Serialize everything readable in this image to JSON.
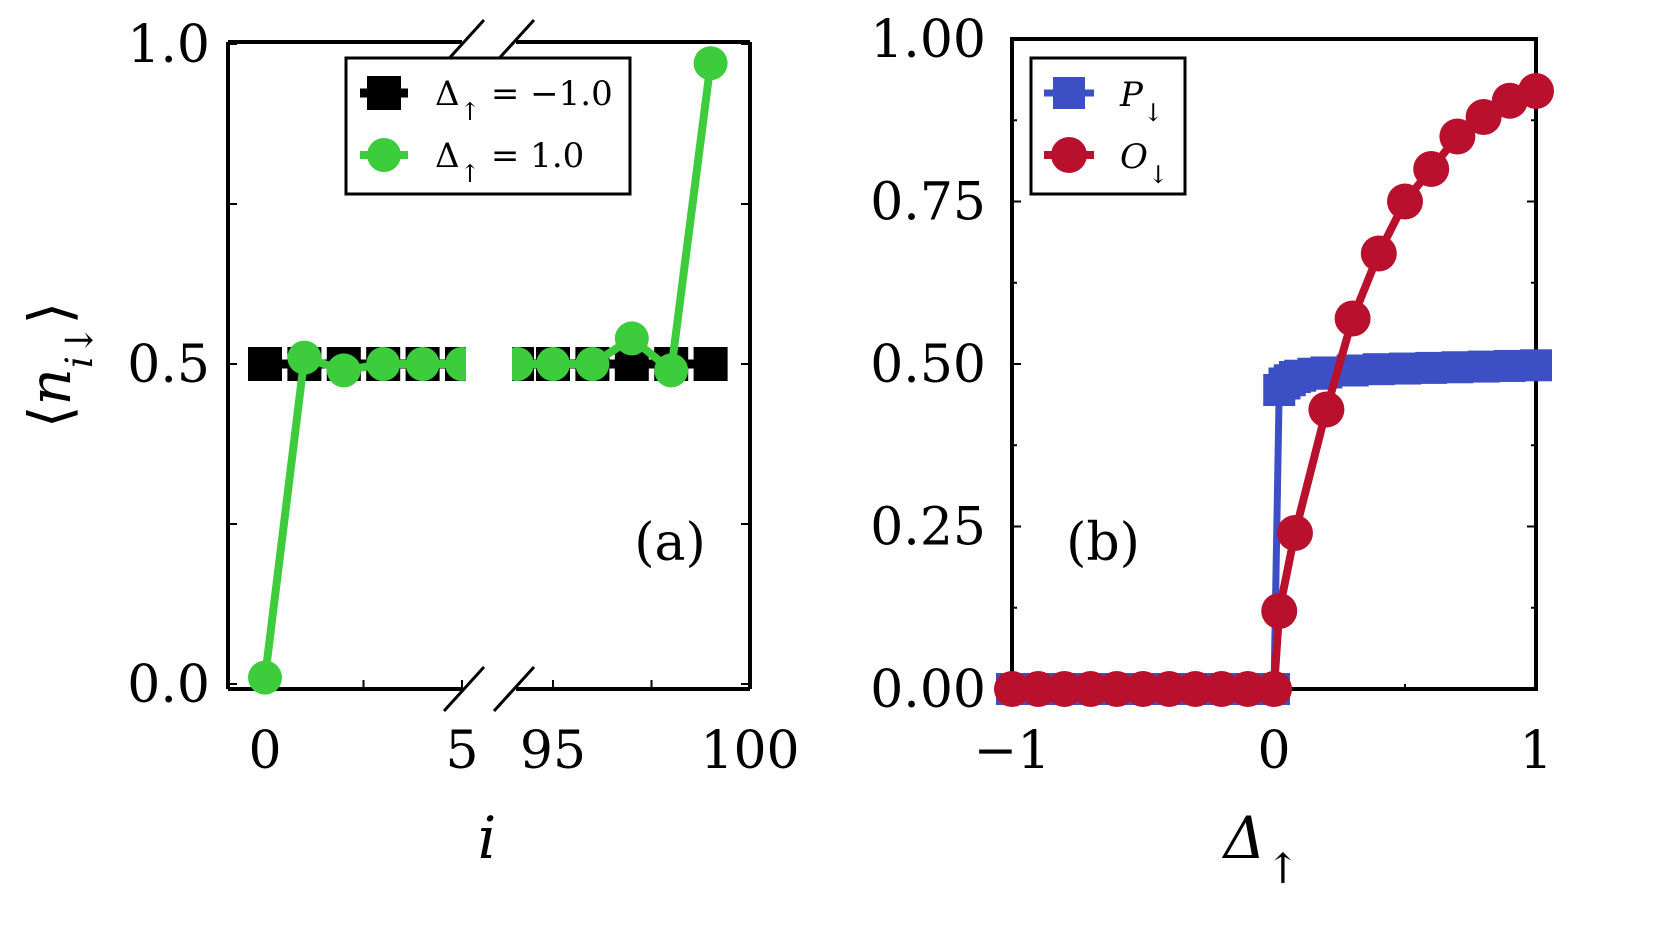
{
  "colors": {
    "black_series": "#000000",
    "green_series": "#3ccc3c",
    "blue_series": "#3d4fc4",
    "red_series": "#b8102d"
  },
  "chart_data": [
    {
      "type": "line",
      "panel_label": "(a)",
      "xlabel": "i",
      "ylabel": "⟨n_{i↓}⟩",
      "ylim": [
        0.0,
        1.0
      ],
      "broken_x_axis": true,
      "x_segments": [
        [
          0,
          5
        ],
        [
          95,
          100
        ]
      ],
      "x_ticks": [
        "0",
        "5",
        "95",
        "100"
      ],
      "y_ticks": [
        "0.0",
        "0.5",
        "1.0"
      ],
      "legend_position": "top-right",
      "grid": false,
      "series": [
        {
          "name": "Δ↑ = −1.0",
          "color": "#000000",
          "marker": "square",
          "x": [
            0,
            1,
            2,
            3,
            4,
            5,
            94,
            95,
            96,
            97,
            98,
            99
          ],
          "values": [
            0.5,
            0.5,
            0.5,
            0.5,
            0.5,
            0.5,
            0.5,
            0.5,
            0.5,
            0.5,
            0.5,
            0.5
          ]
        },
        {
          "name": "Δ↑ = 1.0",
          "color": "#3ccc3c",
          "marker": "circle",
          "x": [
            0,
            1,
            2,
            3,
            4,
            5,
            94,
            95,
            96,
            97,
            98,
            99
          ],
          "values": [
            0.01,
            0.51,
            0.49,
            0.5,
            0.5,
            0.5,
            0.5,
            0.5,
            0.5,
            0.54,
            0.49,
            0.97
          ]
        }
      ]
    },
    {
      "type": "line",
      "panel_label": "(b)",
      "xlabel": "Δ↑",
      "ylabel": "",
      "xlim": [
        -1.0,
        1.0
      ],
      "ylim": [
        0.0,
        1.0
      ],
      "x_ticks": [
        "−1",
        "0",
        "1"
      ],
      "y_ticks": [
        "0.00",
        "0.25",
        "0.50",
        "0.75",
        "1.00"
      ],
      "legend_position": "top-left",
      "grid": false,
      "series": [
        {
          "name": "P↓",
          "color": "#3d4fc4",
          "marker": "square",
          "x": [
            -1.0,
            -0.9,
            -0.8,
            -0.7,
            -0.6,
            -0.5,
            -0.4,
            -0.3,
            -0.2,
            -0.1,
            0.0,
            0.02,
            0.04,
            0.06,
            0.08,
            0.1,
            0.15,
            0.2,
            0.3,
            0.4,
            0.5,
            0.6,
            0.7,
            0.8,
            0.9,
            1.0
          ],
          "values": [
            0,
            0,
            0,
            0,
            0,
            0,
            0,
            0,
            0,
            0,
            0,
            0.46,
            0.47,
            0.475,
            0.48,
            0.482,
            0.485,
            0.487,
            0.49,
            0.492,
            0.493,
            0.494,
            0.495,
            0.496,
            0.497,
            0.498
          ]
        },
        {
          "name": "O↓",
          "color": "#b8102d",
          "marker": "circle",
          "x": [
            -1.0,
            -0.9,
            -0.8,
            -0.7,
            -0.6,
            -0.5,
            -0.4,
            -0.3,
            -0.2,
            -0.1,
            0.0,
            0.02,
            0.08,
            0.2,
            0.3,
            0.4,
            0.5,
            0.6,
            0.7,
            0.8,
            0.9,
            1.0
          ],
          "values": [
            0,
            0,
            0,
            0,
            0,
            0,
            0,
            0,
            0,
            0,
            0,
            0.12,
            0.24,
            0.43,
            0.57,
            0.67,
            0.75,
            0.8,
            0.85,
            0.88,
            0.905,
            0.92
          ]
        }
      ]
    }
  ]
}
